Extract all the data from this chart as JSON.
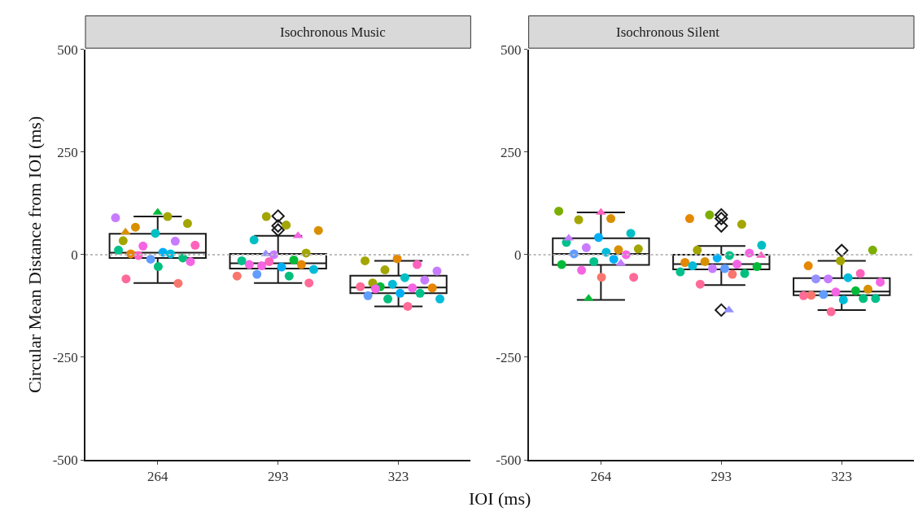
{
  "chart_data": [
    {
      "type": "box",
      "title": "Isochronous Music",
      "xlabel": "IOI (ms)",
      "ylabel": "Circular Mean Distance from IOI (ms)",
      "categories": [
        "264",
        "293",
        "323"
      ],
      "ylim": [
        -500,
        500
      ],
      "yticks": [
        -500,
        -250,
        0,
        250,
        500
      ],
      "legend": false,
      "color": "#ffffff",
      "boxes": [
        {
          "low": -69,
          "q1": -8,
          "median": 5,
          "q3": 51,
          "high": 93
        },
        {
          "low": -69,
          "q1": -34,
          "median": -21,
          "q3": 2,
          "high": 46,
          "outliers": [
            94,
            70,
            60
          ]
        },
        {
          "low": -126,
          "q1": -94,
          "median": -80,
          "q3": -51,
          "high": -15
        }
      ],
      "ref_lines": [
        {
          "axis": "y",
          "value": 0,
          "color": "#bdbdbd",
          "line_style": "dotted"
        }
      ],
      "series": [
        {
          "type": "scatter",
          "marker": "circle",
          "x": [
            "264",
            "264",
            "264",
            "264",
            "264",
            "264",
            "264",
            "264",
            "264",
            "264",
            "264",
            "264",
            "264",
            "264",
            "264",
            "264",
            "264",
            "264",
            "264",
            "264",
            "293",
            "293",
            "293",
            "293",
            "293",
            "293",
            "293",
            "293",
            "293",
            "293",
            "293",
            "293",
            "293",
            "293",
            "293",
            "293",
            "293",
            "293",
            "323",
            "323",
            "323",
            "323",
            "323",
            "323",
            "323",
            "323",
            "323",
            "323",
            "323",
            "323",
            "323",
            "323",
            "323",
            "323",
            "323",
            "323",
            "323",
            "323"
          ],
          "values": [
            90,
            93,
            67,
            76,
            52,
            34,
            33,
            21,
            23,
            6,
            2,
            -8,
            -11,
            11,
            2,
            -2,
            -17,
            -29,
            -59,
            -70,
            93,
            59,
            72,
            36,
            4,
            0,
            -15,
            -13,
            -27,
            -36,
            -30,
            -24,
            -24,
            -17,
            -52,
            -52,
            -48,
            -69,
            -10,
            -15,
            -24,
            -37,
            -40,
            -56,
            -69,
            -62,
            -72,
            -78,
            -81,
            -78,
            -81,
            -94,
            -100,
            -94,
            -108,
            -108,
            -126,
            -83
          ],
          "colors": [
            "#c77cff",
            "#a3a500",
            "#d89000",
            "#a3a500",
            "#00bfc4",
            "#a3a500",
            "#c77cff",
            "#f564e3",
            "#ff62bc",
            "#00b0f6",
            "#e58700",
            "#00bf7d",
            "#619cff",
            "#00c08b",
            "#00bcd8",
            "#ff61c3",
            "#f564e3",
            "#00bf7d",
            "#ff6a98",
            "#f8766d",
            "#a3a500",
            "#d89000",
            "#a3a500",
            "#00bfc4",
            "#a3a500",
            "#c77cff",
            "#00c08b",
            "#00ba38",
            "#f564e3",
            "#00bcd8",
            "#00b0f6",
            "#f564e3",
            "#e58700",
            "#ff62bc",
            "#f8766d",
            "#00bf7d",
            "#619cff",
            "#ff6a98",
            "#e58700",
            "#a3a500",
            "#ff62bc",
            "#a3a500",
            "#c77cff",
            "#00bfc4",
            "#a3a500",
            "#c77cff",
            "#00bcd8",
            "#ff6a98",
            "#f564e3",
            "#00ba38",
            "#e58700",
            "#00b0f6",
            "#619cff",
            "#00c08b",
            "#00bf7d",
            "#00bcd8",
            "#ff6a98",
            "#f564e3"
          ]
        },
        {
          "type": "scatter",
          "marker": "triangle",
          "x": [
            "264",
            "264",
            "293",
            "293"
          ],
          "values": [
            103,
            55,
            46,
            2
          ],
          "colors": [
            "#00ba38",
            "#d89000",
            "#f564e3",
            "#9590ff"
          ]
        }
      ]
    },
    {
      "type": "box",
      "title": "Isochronous Silent",
      "categories": [
        "264",
        "293",
        "323"
      ],
      "ylim": [
        -500,
        500
      ],
      "yticks": [
        -500,
        -250,
        0,
        250,
        500
      ],
      "legend": false,
      "color": "#ffffff",
      "boxes": [
        {
          "low": -110,
          "q1": -25,
          "median": 2,
          "q3": 40,
          "high": 103
        },
        {
          "low": -74,
          "q1": -36,
          "median": -23,
          "q3": 0,
          "high": 21,
          "outliers": [
            97,
            88,
            70,
            -135
          ]
        },
        {
          "low": -135,
          "q1": -99,
          "median": -90,
          "q3": -57,
          "high": -15,
          "outliers": [
            10
          ]
        }
      ],
      "ref_lines": [
        {
          "axis": "y",
          "value": 0,
          "color": "#bdbdbd",
          "line_style": "dotted"
        }
      ],
      "series": [
        {
          "type": "scatter",
          "marker": "circle",
          "x": [
            "264",
            "264",
            "264",
            "264",
            "264",
            "264",
            "264",
            "264",
            "264",
            "264",
            "264",
            "264",
            "264",
            "264",
            "264",
            "264",
            "264",
            "264",
            "293",
            "293",
            "293",
            "293",
            "293",
            "293",
            "293",
            "293",
            "293",
            "293",
            "293",
            "293",
            "293",
            "293",
            "293",
            "293",
            "293",
            "293",
            "293",
            "323",
            "323",
            "323",
            "323",
            "323",
            "323",
            "323",
            "323",
            "323",
            "323",
            "323",
            "323",
            "323",
            "323",
            "323",
            "323",
            "323",
            "323"
          ],
          "values": [
            106,
            88,
            85,
            52,
            42,
            30,
            12,
            17,
            14,
            6,
            2,
            0,
            -17,
            -24,
            -11,
            -38,
            -55,
            -55,
            88,
            74,
            97,
            23,
            -2,
            11,
            4,
            -8,
            -19,
            -23,
            -17,
            -29,
            -34,
            -27,
            -46,
            -34,
            -42,
            -48,
            -72,
            11,
            -15,
            -27,
            -46,
            -59,
            -67,
            -56,
            -59,
            -84,
            -91,
            -100,
            -88,
            -97,
            -107,
            -110,
            -99,
            -107,
            -139
          ],
          "colors": [
            "#7cae00",
            "#d89000",
            "#a3a500",
            "#00bfc4",
            "#00b0f6",
            "#00c08b",
            "#d89000",
            "#c77cff",
            "#a3a500",
            "#00bcd8",
            "#619cff",
            "#f564e3",
            "#00c08b",
            "#00ba38",
            "#00b0f6",
            "#f564e3",
            "#ff6a98",
            "#f8766d",
            "#e58700",
            "#a3a500",
            "#7cae00",
            "#00bfc4",
            "#00c08b",
            "#a3a500",
            "#f564e3",
            "#00b0f6",
            "#e58700",
            "#f564e3",
            "#d89000",
            "#00ba38",
            "#619cff",
            "#00bcd8",
            "#00bf7d",
            "#c77cff",
            "#00c08b",
            "#f8766d",
            "#ff6a98",
            "#7cae00",
            "#a3a500",
            "#e58700",
            "#ff62bc",
            "#c77cff",
            "#f564e3",
            "#00bcd8",
            "#9590ff",
            "#d89000",
            "#f564e3",
            "#ff6a98",
            "#00ba38",
            "#619cff",
            "#00c08b",
            "#00bcd8",
            "#f8766d",
            "#00bf7d",
            "#ff6a98"
          ]
        },
        {
          "type": "scatter",
          "marker": "triangle",
          "x": [
            "264",
            "264",
            "264",
            "264",
            "293",
            "293"
          ],
          "values": [
            103,
            40,
            -21,
            -107,
            -2,
            -135
          ],
          "colors": [
            "#ff61c3",
            "#c77cff",
            "#c77cff",
            "#00ba38",
            "#ff61c3",
            "#9590ff"
          ]
        }
      ]
    }
  ]
}
